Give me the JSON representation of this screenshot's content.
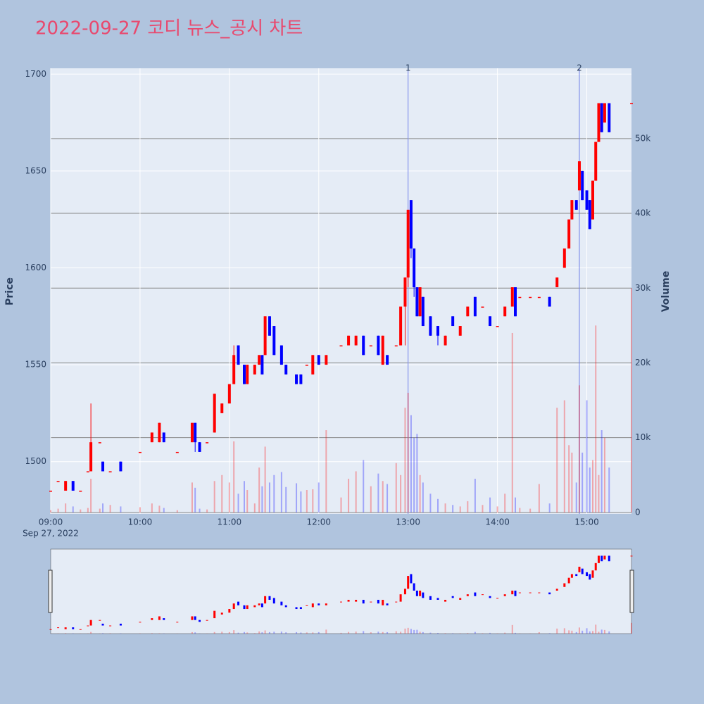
{
  "chart_data": {
    "type": "candlestick",
    "title": "2022-09-27 코디 뉴스_공시 차트",
    "y_label": "Price",
    "y2_label": "Volume",
    "x_date_label": "Sep 27, 2022",
    "increasing_color": "#ff0000",
    "decreasing_color": "#0000ff",
    "x": [
      "09:00",
      "09:05",
      "09:10",
      "09:15",
      "09:20",
      "09:25",
      "09:27",
      "09:33",
      "09:35",
      "09:40",
      "09:47",
      "10:00",
      "10:08",
      "10:13",
      "10:16",
      "10:25",
      "10:35",
      "10:37",
      "10:40",
      "10:45",
      "10:50",
      "10:55",
      "11:00",
      "11:03",
      "11:06",
      "11:10",
      "11:12",
      "11:17",
      "11:20",
      "11:22",
      "11:24",
      "11:27",
      "11:30",
      "11:35",
      "11:38",
      "11:45",
      "11:48",
      "11:52",
      "11:56",
      "12:00",
      "12:05",
      "12:15",
      "12:20",
      "12:25",
      "12:30",
      "12:35",
      "12:40",
      "12:43",
      "12:46",
      "12:52",
      "12:55",
      "12:58",
      "13:00",
      "13:02",
      "13:04",
      "13:06",
      "13:08",
      "13:10",
      "13:15",
      "13:20",
      "13:25",
      "13:30",
      "13:35",
      "13:40",
      "13:45",
      "13:50",
      "13:55",
      "14:00",
      "14:05",
      "14:10",
      "14:12",
      "14:15",
      "14:22",
      "14:28",
      "14:35",
      "14:40",
      "14:45",
      "14:48",
      "14:50",
      "14:53",
      "14:55",
      "14:57",
      "15:00",
      "15:02",
      "15:04",
      "15:06",
      "15:08",
      "15:10",
      "15:12",
      "15:15",
      "15:30"
    ],
    "open": [
      1485,
      1490,
      1485,
      1490,
      1485,
      1495,
      1495,
      1510,
      1500,
      1495,
      1500,
      1505,
      1510,
      1510,
      1515,
      1505,
      1510,
      1520,
      1510,
      1510,
      1515,
      1525,
      1530,
      1540,
      1560,
      1550,
      1540,
      1545,
      1550,
      1555,
      1555,
      1575,
      1570,
      1560,
      1550,
      1545,
      1545,
      1550,
      1545,
      1555,
      1550,
      1560,
      1560,
      1560,
      1565,
      1560,
      1565,
      1550,
      1555,
      1560,
      1560,
      1580,
      1595,
      1635,
      1610,
      1590,
      1575,
      1585,
      1575,
      1570,
      1560,
      1575,
      1565,
      1575,
      1585,
      1580,
      1575,
      1570,
      1575,
      1580,
      1590,
      1585,
      1585,
      1585,
      1585,
      1590,
      1600,
      1610,
      1625,
      1635,
      1640,
      1650,
      1640,
      1635,
      1625,
      1645,
      1665,
      1685,
      1675,
      1685,
      1685
    ],
    "high": [
      1485,
      1490,
      1490,
      1490,
      1485,
      1495,
      1530,
      1510,
      1500,
      1495,
      1500,
      1505,
      1515,
      1520,
      1515,
      1505,
      1520,
      1520,
      1510,
      1510,
      1535,
      1530,
      1540,
      1560,
      1560,
      1550,
      1550,
      1550,
      1555,
      1555,
      1575,
      1575,
      1570,
      1560,
      1550,
      1545,
      1545,
      1550,
      1555,
      1555,
      1555,
      1560,
      1565,
      1565,
      1565,
      1560,
      1565,
      1565,
      1555,
      1560,
      1580,
      1595,
      1630,
      1635,
      1610,
      1590,
      1590,
      1585,
      1575,
      1570,
      1565,
      1575,
      1570,
      1580,
      1585,
      1580,
      1575,
      1570,
      1580,
      1590,
      1590,
      1585,
      1585,
      1585,
      1585,
      1595,
      1610,
      1625,
      1635,
      1635,
      1655,
      1650,
      1640,
      1635,
      1645,
      1665,
      1685,
      1685,
      1685,
      1685,
      1685
    ],
    "low": [
      1485,
      1490,
      1485,
      1485,
      1485,
      1495,
      1495,
      1510,
      1495,
      1495,
      1495,
      1505,
      1510,
      1510,
      1510,
      1505,
      1510,
      1505,
      1505,
      1510,
      1515,
      1525,
      1530,
      1540,
      1550,
      1540,
      1540,
      1545,
      1550,
      1545,
      1555,
      1565,
      1555,
      1550,
      1545,
      1540,
      1540,
      1550,
      1545,
      1550,
      1550,
      1560,
      1560,
      1560,
      1555,
      1560,
      1555,
      1550,
      1550,
      1560,
      1560,
      1560,
      1590,
      1605,
      1585,
      1575,
      1575,
      1570,
      1565,
      1560,
      1560,
      1570,
      1565,
      1575,
      1575,
      1580,
      1570,
      1570,
      1575,
      1580,
      1575,
      1585,
      1585,
      1585,
      1580,
      1590,
      1600,
      1610,
      1625,
      1630,
      1640,
      1635,
      1630,
      1620,
      1625,
      1645,
      1665,
      1670,
      1675,
      1670,
      1685
    ],
    "close": [
      1485,
      1490,
      1490,
      1485,
      1485,
      1495,
      1510,
      1510,
      1495,
      1495,
      1495,
      1505,
      1515,
      1520,
      1510,
      1505,
      1520,
      1510,
      1505,
      1510,
      1535,
      1530,
      1540,
      1555,
      1550,
      1540,
      1550,
      1550,
      1555,
      1545,
      1575,
      1565,
      1555,
      1550,
      1545,
      1540,
      1540,
      1550,
      1555,
      1550,
      1555,
      1560,
      1565,
      1565,
      1555,
      1560,
      1555,
      1565,
      1550,
      1560,
      1580,
      1595,
      1630,
      1610,
      1590,
      1575,
      1590,
      1570,
      1565,
      1565,
      1565,
      1570,
      1570,
      1580,
      1575,
      1580,
      1570,
      1570,
      1580,
      1590,
      1575,
      1585,
      1585,
      1585,
      1580,
      1595,
      1610,
      1625,
      1635,
      1630,
      1655,
      1635,
      1630,
      1620,
      1645,
      1665,
      1685,
      1670,
      1685,
      1670,
      1685
    ],
    "volume": [
      300,
      500,
      1200,
      800,
      400,
      600,
      4500,
      500,
      1200,
      1000,
      800,
      700,
      1200,
      900,
      600,
      300,
      4000,
      3300,
      500,
      400,
      4200,
      5000,
      4000,
      9500,
      2500,
      4200,
      3000,
      1200,
      6000,
      3500,
      8800,
      4000,
      5000,
      5400,
      3400,
      3900,
      2800,
      3000,
      3100,
      4000,
      11000,
      2000,
      4500,
      5500,
      7000,
      3500,
      5200,
      4200,
      3800,
      6600,
      5000,
      14000,
      16000,
      13000,
      10000,
      10500,
      5000,
      4000,
      2500,
      1800,
      1200,
      1000,
      800,
      1500,
      4500,
      1000,
      2000,
      800,
      2500,
      24000,
      2000,
      600,
      500,
      3800,
      1200,
      14000,
      15000,
      9000,
      8000,
      4000,
      17000,
      8000,
      15000,
      6000,
      7000,
      25000,
      5000,
      11000,
      10000,
      6000,
      30000
    ],
    "xlim": [
      "09:00",
      "15:30"
    ],
    "xticks": [
      "09:00",
      "10:00",
      "11:00",
      "12:00",
      "13:00",
      "14:00",
      "15:00"
    ],
    "ylim": [
      1473,
      1703
    ],
    "yticks": [
      1500,
      1550,
      1600,
      1650,
      1700
    ],
    "y2lim": [
      -200,
      59400
    ],
    "y2ticks": [
      0,
      {
        "value": 10000,
        "label": "10k"
      },
      {
        "value": 20000,
        "label": "20k"
      },
      {
        "value": 30000,
        "label": "30k"
      },
      {
        "value": 40000,
        "label": "40k"
      },
      {
        "value": 50000,
        "label": "50k"
      }
    ],
    "annotations": [
      {
        "x": "13:00",
        "text": "1"
      },
      {
        "x": "14:55",
        "text": "2"
      }
    ],
    "grid": true
  }
}
